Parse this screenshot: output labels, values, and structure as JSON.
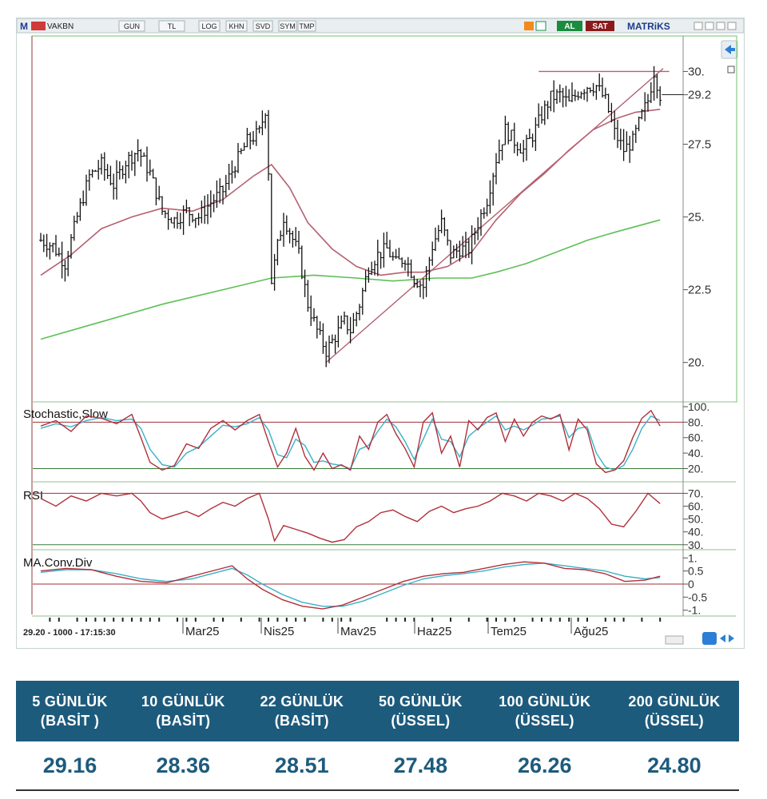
{
  "toolbar": {
    "symbol": "VAKBN",
    "buttons": [
      "GUN",
      "TL",
      "LOG",
      "KHN",
      "SVD",
      "SYM",
      "TMP"
    ],
    "al_label": "AL",
    "sat_label": "SAT",
    "brand": "MATRiKS"
  },
  "status_text": "29.20 - 1000 - 17:15:30",
  "chart_data": {
    "type": "candlestick",
    "price_axis": {
      "ticks": [
        20,
        22.5,
        25,
        27.5,
        29.2,
        30
      ],
      "tick_labels": [
        "20.",
        "22.5",
        "25.",
        "27.5",
        "29.2",
        "30."
      ]
    },
    "x_labels": [
      "Mar25",
      "Nis25",
      "Mav25",
      "Haz25",
      "Tem25",
      "Ağu25"
    ],
    "ohlc_points": [
      [
        0,
        24.2
      ],
      [
        4,
        24.0
      ],
      [
        8,
        23.4
      ],
      [
        12,
        25.0
      ],
      [
        16,
        26.4
      ],
      [
        20,
        26.8
      ],
      [
        24,
        26.1
      ],
      [
        28,
        26.9
      ],
      [
        32,
        27.3
      ],
      [
        36,
        26.5
      ],
      [
        40,
        25.2
      ],
      [
        44,
        24.9
      ],
      [
        48,
        25.2
      ],
      [
        52,
        25.0
      ],
      [
        56,
        25.5
      ],
      [
        60,
        25.9
      ],
      [
        64,
        26.8
      ],
      [
        68,
        27.6
      ],
      [
        72,
        27.9
      ],
      [
        74,
        28.7
      ],
      [
        75,
        26.6
      ],
      [
        76,
        22.8
      ],
      [
        78,
        24.0
      ],
      [
        80,
        25.0
      ],
      [
        82,
        24.5
      ],
      [
        85,
        23.7
      ],
      [
        88,
        22.0
      ],
      [
        91,
        21.1
      ],
      [
        94,
        20.4
      ],
      [
        97,
        20.9
      ],
      [
        100,
        21.4
      ],
      [
        102,
        21.1
      ],
      [
        105,
        22.0
      ],
      [
        108,
        23.3
      ],
      [
        111,
        23.7
      ],
      [
        114,
        23.9
      ],
      [
        117,
        23.4
      ],
      [
        120,
        23.6
      ],
      [
        123,
        22.9
      ],
      [
        126,
        22.6
      ],
      [
        129,
        24.0
      ],
      [
        132,
        24.8
      ],
      [
        135,
        23.7
      ],
      [
        138,
        23.9
      ],
      [
        141,
        23.9
      ],
      [
        144,
        24.8
      ],
      [
        147,
        25.6
      ],
      [
        150,
        27.0
      ],
      [
        153,
        28.0
      ],
      [
        156,
        27.6
      ],
      [
        159,
        27.3
      ],
      [
        162,
        27.8
      ],
      [
        165,
        28.5
      ],
      [
        168,
        29.1
      ],
      [
        171,
        29.2
      ],
      [
        174,
        28.9
      ],
      [
        177,
        29.3
      ],
      [
        180,
        29.5
      ],
      [
        183,
        29.5
      ],
      [
        186,
        29.0
      ],
      [
        189,
        27.9
      ],
      [
        192,
        27.3
      ],
      [
        195,
        27.6
      ],
      [
        198,
        28.5
      ],
      [
        200,
        29.0
      ],
      [
        202,
        30.0
      ],
      [
        204,
        29.2
      ]
    ],
    "moving_averages": [
      {
        "color": "#b56070",
        "points": [
          [
            0,
            23.0
          ],
          [
            10,
            23.7
          ],
          [
            20,
            24.6
          ],
          [
            30,
            25.0
          ],
          [
            40,
            25.3
          ],
          [
            50,
            25.2
          ],
          [
            60,
            25.6
          ],
          [
            70,
            26.4
          ],
          [
            76,
            26.8
          ],
          [
            82,
            26.0
          ],
          [
            88,
            24.8
          ],
          [
            96,
            23.9
          ],
          [
            104,
            23.3
          ],
          [
            112,
            23.0
          ],
          [
            120,
            23.1
          ],
          [
            126,
            23.1
          ],
          [
            134,
            23.3
          ],
          [
            142,
            23.8
          ],
          [
            150,
            24.9
          ],
          [
            158,
            25.8
          ],
          [
            166,
            26.5
          ],
          [
            174,
            27.3
          ],
          [
            182,
            28.0
          ],
          [
            190,
            28.4
          ],
          [
            196,
            28.6
          ],
          [
            204,
            28.7
          ]
        ]
      },
      {
        "color": "#5dbf55",
        "points": [
          [
            0,
            20.8
          ],
          [
            20,
            21.4
          ],
          [
            40,
            22.0
          ],
          [
            60,
            22.5
          ],
          [
            76,
            22.9
          ],
          [
            90,
            23.0
          ],
          [
            104,
            22.9
          ],
          [
            116,
            22.8
          ],
          [
            130,
            22.9
          ],
          [
            142,
            22.9
          ],
          [
            150,
            23.1
          ],
          [
            160,
            23.4
          ],
          [
            170,
            23.8
          ],
          [
            180,
            24.2
          ],
          [
            190,
            24.5
          ],
          [
            204,
            24.9
          ]
        ]
      }
    ],
    "trendlines": [
      {
        "color": "#b56070",
        "points": [
          [
            94,
            20.0
          ],
          [
            205,
            30.1
          ]
        ]
      },
      {
        "color": "#b56070",
        "points": [
          [
            164,
            30.0
          ],
          [
            207,
            30.0
          ]
        ]
      }
    ],
    "stochastic": {
      "title": "Stochastic,Slow",
      "tick_labels": [
        "100.",
        "80.",
        "60.",
        "40.",
        "20."
      ],
      "levels": [
        80,
        20
      ],
      "k": [
        [
          0,
          75
        ],
        [
          5,
          82
        ],
        [
          10,
          68
        ],
        [
          15,
          88
        ],
        [
          20,
          85
        ],
        [
          25,
          78
        ],
        [
          30,
          90
        ],
        [
          33,
          60
        ],
        [
          36,
          28
        ],
        [
          40,
          18
        ],
        [
          44,
          24
        ],
        [
          48,
          52
        ],
        [
          52,
          46
        ],
        [
          56,
          72
        ],
        [
          60,
          82
        ],
        [
          64,
          70
        ],
        [
          68,
          82
        ],
        [
          72,
          90
        ],
        [
          75,
          55
        ],
        [
          78,
          22
        ],
        [
          81,
          40
        ],
        [
          84,
          72
        ],
        [
          87,
          36
        ],
        [
          90,
          18
        ],
        [
          93,
          40
        ],
        [
          96,
          20
        ],
        [
          99,
          25
        ],
        [
          102,
          18
        ],
        [
          105,
          62
        ],
        [
          108,
          45
        ],
        [
          111,
          80
        ],
        [
          114,
          90
        ],
        [
          117,
          65
        ],
        [
          120,
          46
        ],
        [
          123,
          22
        ],
        [
          126,
          80
        ],
        [
          129,
          92
        ],
        [
          132,
          40
        ],
        [
          135,
          62
        ],
        [
          138,
          22
        ],
        [
          141,
          82
        ],
        [
          144,
          70
        ],
        [
          147,
          86
        ],
        [
          150,
          92
        ],
        [
          153,
          55
        ],
        [
          156,
          84
        ],
        [
          159,
          62
        ],
        [
          162,
          80
        ],
        [
          165,
          88
        ],
        [
          168,
          84
        ],
        [
          171,
          90
        ],
        [
          174,
          44
        ],
        [
          177,
          84
        ],
        [
          180,
          70
        ],
        [
          183,
          26
        ],
        [
          186,
          15
        ],
        [
          189,
          18
        ],
        [
          192,
          30
        ],
        [
          195,
          60
        ],
        [
          198,
          85
        ],
        [
          201,
          95
        ],
        [
          204,
          75
        ]
      ],
      "d": [
        [
          0,
          72
        ],
        [
          5,
          78
        ],
        [
          10,
          74
        ],
        [
          15,
          82
        ],
        [
          20,
          86
        ],
        [
          25,
          82
        ],
        [
          30,
          84
        ],
        [
          33,
          72
        ],
        [
          36,
          45
        ],
        [
          40,
          25
        ],
        [
          44,
          22
        ],
        [
          48,
          40
        ],
        [
          52,
          48
        ],
        [
          56,
          62
        ],
        [
          60,
          76
        ],
        [
          64,
          74
        ],
        [
          68,
          78
        ],
        [
          72,
          86
        ],
        [
          75,
          70
        ],
        [
          78,
          38
        ],
        [
          81,
          34
        ],
        [
          84,
          58
        ],
        [
          87,
          50
        ],
        [
          90,
          28
        ],
        [
          93,
          30
        ],
        [
          96,
          26
        ],
        [
          99,
          24
        ],
        [
          102,
          20
        ],
        [
          105,
          45
        ],
        [
          108,
          50
        ],
        [
          111,
          68
        ],
        [
          114,
          84
        ],
        [
          117,
          74
        ],
        [
          120,
          55
        ],
        [
          123,
          32
        ],
        [
          126,
          58
        ],
        [
          129,
          84
        ],
        [
          132,
          58
        ],
        [
          135,
          55
        ],
        [
          138,
          35
        ],
        [
          141,
          62
        ],
        [
          144,
          72
        ],
        [
          147,
          80
        ],
        [
          150,
          88
        ],
        [
          153,
          70
        ],
        [
          156,
          75
        ],
        [
          159,
          70
        ],
        [
          162,
          76
        ],
        [
          165,
          84
        ],
        [
          168,
          85
        ],
        [
          171,
          88
        ],
        [
          174,
          60
        ],
        [
          177,
          72
        ],
        [
          180,
          74
        ],
        [
          183,
          40
        ],
        [
          186,
          22
        ],
        [
          189,
          18
        ],
        [
          192,
          24
        ],
        [
          195,
          45
        ],
        [
          198,
          72
        ],
        [
          201,
          88
        ],
        [
          204,
          82
        ]
      ]
    },
    "rsi": {
      "title": "RSI",
      "tick_labels": [
        "70.",
        "60.",
        "50.",
        "40.",
        "30."
      ],
      "levels": [
        70,
        30
      ],
      "values": [
        [
          0,
          66
        ],
        [
          5,
          60
        ],
        [
          10,
          68
        ],
        [
          15,
          64
        ],
        [
          20,
          70
        ],
        [
          25,
          68
        ],
        [
          30,
          70
        ],
        [
          33,
          64
        ],
        [
          36,
          55
        ],
        [
          40,
          50
        ],
        [
          44,
          53
        ],
        [
          48,
          56
        ],
        [
          52,
          52
        ],
        [
          56,
          58
        ],
        [
          60,
          63
        ],
        [
          64,
          60
        ],
        [
          68,
          66
        ],
        [
          72,
          70
        ],
        [
          75,
          50
        ],
        [
          77,
          33
        ],
        [
          80,
          45
        ],
        [
          84,
          42
        ],
        [
          88,
          39
        ],
        [
          92,
          35
        ],
        [
          96,
          32
        ],
        [
          100,
          34
        ],
        [
          104,
          44
        ],
        [
          108,
          48
        ],
        [
          112,
          55
        ],
        [
          116,
          57
        ],
        [
          120,
          52
        ],
        [
          124,
          48
        ],
        [
          128,
          56
        ],
        [
          132,
          60
        ],
        [
          136,
          55
        ],
        [
          140,
          58
        ],
        [
          144,
          60
        ],
        [
          148,
          64
        ],
        [
          152,
          70
        ],
        [
          156,
          68
        ],
        [
          160,
          64
        ],
        [
          164,
          70
        ],
        [
          168,
          68
        ],
        [
          172,
          64
        ],
        [
          176,
          70
        ],
        [
          180,
          66
        ],
        [
          184,
          58
        ],
        [
          188,
          46
        ],
        [
          192,
          44
        ],
        [
          196,
          56
        ],
        [
          200,
          70
        ],
        [
          204,
          62
        ]
      ]
    },
    "macd": {
      "title": "MA.Conv.Div",
      "tick_labels": [
        "1.",
        "0.5",
        "0",
        "-0.5",
        "-1."
      ],
      "zero_line": 0,
      "macd": [
        [
          0,
          0.5
        ],
        [
          10,
          0.6
        ],
        [
          20,
          0.55
        ],
        [
          30,
          0.3
        ],
        [
          40,
          0.1
        ],
        [
          50,
          0.05
        ],
        [
          60,
          0.3
        ],
        [
          70,
          0.55
        ],
        [
          76,
          0.7
        ],
        [
          82,
          0.2
        ],
        [
          88,
          -0.2
        ],
        [
          96,
          -0.6
        ],
        [
          104,
          -0.85
        ],
        [
          112,
          -0.95
        ],
        [
          120,
          -0.8
        ],
        [
          128,
          -0.5
        ],
        [
          136,
          -0.2
        ],
        [
          144,
          0.1
        ],
        [
          152,
          0.3
        ],
        [
          160,
          0.4
        ],
        [
          168,
          0.45
        ],
        [
          176,
          0.6
        ],
        [
          184,
          0.75
        ],
        [
          192,
          0.85
        ],
        [
          200,
          0.8
        ],
        [
          208,
          0.6
        ],
        [
          216,
          0.55
        ],
        [
          224,
          0.4
        ],
        [
          232,
          0.1
        ],
        [
          240,
          0.15
        ],
        [
          246,
          0.3
        ]
      ],
      "signal": [
        [
          0,
          0.45
        ],
        [
          10,
          0.55
        ],
        [
          20,
          0.55
        ],
        [
          30,
          0.4
        ],
        [
          40,
          0.2
        ],
        [
          50,
          0.1
        ],
        [
          60,
          0.2
        ],
        [
          70,
          0.45
        ],
        [
          76,
          0.6
        ],
        [
          82,
          0.35
        ],
        [
          88,
          0.0
        ],
        [
          96,
          -0.4
        ],
        [
          104,
          -0.7
        ],
        [
          112,
          -0.85
        ],
        [
          120,
          -0.85
        ],
        [
          128,
          -0.65
        ],
        [
          136,
          -0.35
        ],
        [
          144,
          -0.05
        ],
        [
          152,
          0.2
        ],
        [
          160,
          0.32
        ],
        [
          168,
          0.4
        ],
        [
          176,
          0.5
        ],
        [
          184,
          0.65
        ],
        [
          192,
          0.75
        ],
        [
          200,
          0.8
        ],
        [
          208,
          0.7
        ],
        [
          216,
          0.6
        ],
        [
          224,
          0.5
        ],
        [
          232,
          0.3
        ],
        [
          240,
          0.2
        ],
        [
          246,
          0.25
        ]
      ]
    }
  },
  "ma_table": {
    "headers": [
      {
        "line1": "5 GÜNLÜK",
        "line2": "(BASİT )"
      },
      {
        "line1": "10 GÜNLÜK",
        "line2": "(BASİT)"
      },
      {
        "line1": "22 GÜNLÜK",
        "line2": "(BASİT)"
      },
      {
        "line1": "50 GÜNLÜK",
        "line2": "(ÜSSEL)"
      },
      {
        "line1": "100 GÜNLÜK",
        "line2": "(ÜSSEL)"
      },
      {
        "line1": "200 GÜNLÜK",
        "line2": "(ÜSSEL)"
      }
    ],
    "values": [
      "29.16",
      "28.36",
      "28.51",
      "27.48",
      "26.26",
      "24.80"
    ]
  }
}
